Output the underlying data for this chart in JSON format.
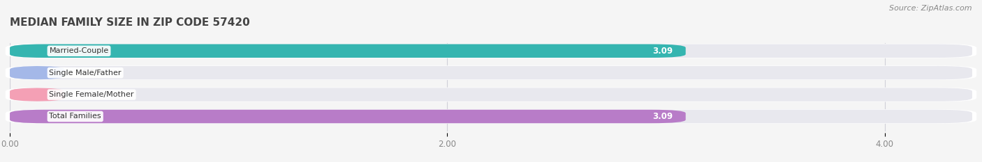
{
  "title": "MEDIAN FAMILY SIZE IN ZIP CODE 57420",
  "source_text": "Source: ZipAtlas.com",
  "categories": [
    "Married-Couple",
    "Single Male/Father",
    "Single Female/Mother",
    "Total Families"
  ],
  "values": [
    3.09,
    0.0,
    0.0,
    3.09
  ],
  "bar_colors": [
    "#35b5b0",
    "#a4b8e8",
    "#f4a0b5",
    "#b87cc8"
  ],
  "xlim_max": 4.4,
  "xticks": [
    0.0,
    2.0,
    4.0
  ],
  "xtick_labels": [
    "0.00",
    "2.00",
    "4.00"
  ],
  "background_color": "#f5f5f5",
  "bar_bg_color": "#e8e8ee",
  "row_bg_color": "#ffffff",
  "title_fontsize": 11,
  "bar_height": 0.62,
  "value_label_fontsize": 8.5,
  "category_label_fontsize": 8,
  "zero_bar_width": 0.25,
  "source_fontsize": 8
}
